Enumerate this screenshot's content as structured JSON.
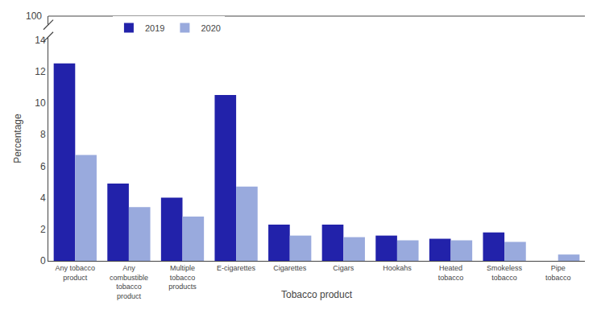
{
  "chart_data": {
    "type": "bar",
    "categories": [
      "Any tobacco\nproduct",
      "Any\ncombustible\ntobacco\nproduct",
      "Multiple\ntobacco\nproducts",
      "E-cigarettes",
      "Cigarettes",
      "Cigars",
      "Hookahs",
      "Heated\ntobacco",
      "Smokeless\ntobacco",
      "Pipe\ntobacco"
    ],
    "series": [
      {
        "name": "2019",
        "color": "#2222aa",
        "values": [
          12.5,
          4.9,
          4.0,
          10.5,
          2.3,
          2.3,
          1.6,
          1.4,
          1.8,
          0.0
        ]
      },
      {
        "name": "2020",
        "color": "#99aadd",
        "values": [
          6.7,
          3.4,
          2.8,
          4.7,
          1.6,
          1.5,
          1.3,
          1.3,
          1.2,
          0.4
        ]
      }
    ],
    "xlabel": "Tobacco product",
    "ylabel": "Percentage",
    "ylim": [
      0,
      15.5
    ],
    "yticks": [
      0,
      2,
      4,
      6,
      8,
      10,
      12,
      14
    ],
    "annotations": [
      "100"
    ],
    "legend": "upper left",
    "grid": false
  }
}
